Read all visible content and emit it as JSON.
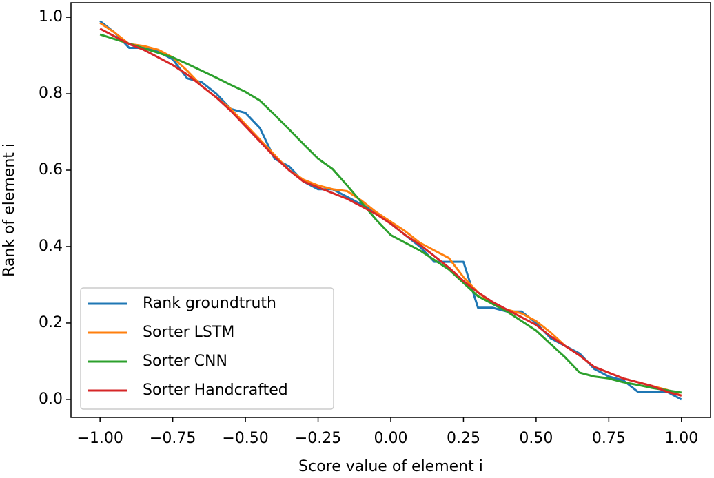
{
  "chart_data": {
    "type": "line",
    "xlabel": "Score value of element i",
    "ylabel": "Rank of element i",
    "xlim": [
      -1.1,
      1.1
    ],
    "ylim": [
      -0.047,
      1.038
    ],
    "xticks": [
      {
        "value": -1,
        "label": "−1.00"
      },
      {
        "value": -0.75,
        "label": "−0.75"
      },
      {
        "value": -0.5,
        "label": "−0.50"
      },
      {
        "value": -0.25,
        "label": "−0.25"
      },
      {
        "value": 0,
        "label": "0.00"
      },
      {
        "value": 0.25,
        "label": "0.25"
      },
      {
        "value": 0.5,
        "label": "0.50"
      },
      {
        "value": 0.75,
        "label": "0.75"
      },
      {
        "value": 1,
        "label": "1.00"
      }
    ],
    "yticks": [
      {
        "value": 0,
        "label": "0.0"
      },
      {
        "value": 0.2,
        "label": "0.2"
      },
      {
        "value": 0.4,
        "label": "0.4"
      },
      {
        "value": 0.6,
        "label": "0.6"
      },
      {
        "value": 0.8,
        "label": "0.8"
      },
      {
        "value": 1,
        "label": "1.0"
      }
    ],
    "legend": "lower left",
    "x": [
      -1,
      -0.95,
      -0.9,
      -0.85,
      -0.8,
      -0.75,
      -0.7,
      -0.65,
      -0.6,
      -0.55,
      -0.5,
      -0.45,
      -0.4,
      -0.35,
      -0.3,
      -0.25,
      -0.2,
      -0.15,
      -0.1,
      -0.05,
      0,
      0.05,
      0.1,
      0.15,
      0.2,
      0.25,
      0.3,
      0.35,
      0.4,
      0.45,
      0.5,
      0.55,
      0.6,
      0.65,
      0.7,
      0.75,
      0.8,
      0.85,
      0.9,
      0.95,
      1
    ],
    "series": [
      {
        "name": "Rank groundtruth",
        "color": "#1f77b4",
        "values": [
          0.99,
          0.96,
          0.92,
          0.92,
          0.91,
          0.89,
          0.84,
          0.83,
          0.8,
          0.76,
          0.75,
          0.71,
          0.63,
          0.61,
          0.57,
          0.55,
          0.55,
          0.53,
          0.51,
          0.49,
          0.46,
          0.43,
          0.4,
          0.36,
          0.36,
          0.36,
          0.24,
          0.24,
          0.23,
          0.23,
          0.2,
          0.16,
          0.14,
          0.12,
          0.08,
          0.06,
          0.05,
          0.02,
          0.02,
          0.02,
          0.0
        ]
      },
      {
        "name": "Sorter LSTM",
        "color": "#ff7f0e",
        "values": [
          0.985,
          0.96,
          0.93,
          0.925,
          0.915,
          0.895,
          0.86,
          0.82,
          0.79,
          0.76,
          0.72,
          0.68,
          0.64,
          0.6,
          0.575,
          0.56,
          0.55,
          0.545,
          0.52,
          0.49,
          0.465,
          0.44,
          0.41,
          0.39,
          0.37,
          0.32,
          0.28,
          0.25,
          0.235,
          0.225,
          0.205,
          0.175,
          0.14,
          0.115,
          0.085,
          0.07,
          0.055,
          0.045,
          0.035,
          0.025,
          0.01
        ]
      },
      {
        "name": "Sorter CNN",
        "color": "#2ca02c",
        "values": [
          0.955,
          0.943,
          0.931,
          0.919,
          0.907,
          0.895,
          0.878,
          0.86,
          0.842,
          0.823,
          0.805,
          0.782,
          0.745,
          0.707,
          0.668,
          0.63,
          0.603,
          0.56,
          0.515,
          0.47,
          0.43,
          0.41,
          0.39,
          0.365,
          0.34,
          0.305,
          0.27,
          0.25,
          0.23,
          0.205,
          0.18,
          0.145,
          0.11,
          0.07,
          0.06,
          0.055,
          0.045,
          0.038,
          0.03,
          0.024,
          0.018
        ]
      },
      {
        "name": "Sorter Handcrafted",
        "color": "#d62728",
        "values": [
          0.97,
          0.95,
          0.93,
          0.915,
          0.895,
          0.875,
          0.85,
          0.82,
          0.79,
          0.755,
          0.715,
          0.675,
          0.635,
          0.6,
          0.57,
          0.555,
          0.54,
          0.525,
          0.505,
          0.485,
          0.46,
          0.43,
          0.405,
          0.375,
          0.345,
          0.31,
          0.28,
          0.255,
          0.235,
          0.215,
          0.195,
          0.165,
          0.14,
          0.115,
          0.085,
          0.07,
          0.055,
          0.045,
          0.035,
          0.02,
          0.01
        ]
      }
    ]
  }
}
